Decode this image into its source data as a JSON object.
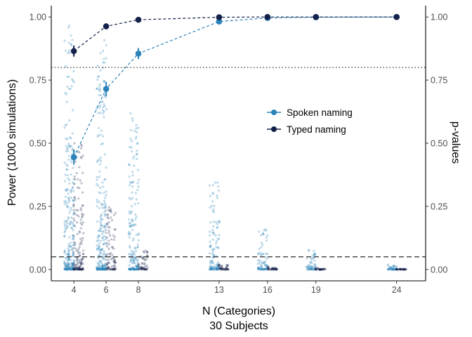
{
  "chart_data": {
    "type": "line",
    "title": "",
    "xlabel": "N (Categories)",
    "xlabel_sub": "30 Subjects",
    "ylabel_left": "Power (1000 simulations)",
    "ylabel_right": "p-values",
    "x_ticks": [
      4,
      6,
      8,
      13,
      16,
      19,
      24
    ],
    "y_ticks": [
      0.0,
      0.25,
      0.5,
      0.75,
      1.0
    ],
    "y_tick_labels": [
      "0.00",
      "0.25",
      "0.50",
      "0.75",
      "1.00"
    ],
    "xlim": [
      2.6,
      25.8
    ],
    "ylim": [
      -0.045,
      1.045
    ],
    "power_threshold": 0.8,
    "alpha_threshold": 0.05,
    "grid": false,
    "legend_position": "center-right",
    "series": [
      {
        "name": "Spoken naming",
        "color": "#2b83ba",
        "x": [
          4,
          6,
          8,
          13,
          16,
          19,
          24
        ],
        "power": [
          0.445,
          0.715,
          0.855,
          0.982,
          0.996,
          0.999,
          1.0
        ],
        "ci_low": [
          0.415,
          0.687,
          0.833,
          0.975,
          0.992,
          0.997,
          0.999
        ],
        "ci_high": [
          0.475,
          0.743,
          0.877,
          0.989,
          0.999,
          1.0,
          1.0
        ],
        "pvalue_spread_max": [
          0.98,
          0.92,
          0.62,
          0.35,
          0.17,
          0.08,
          0.02
        ]
      },
      {
        "name": "Typed naming",
        "color": "#14214a",
        "x": [
          4,
          6,
          8,
          13,
          16,
          19,
          24
        ],
        "power": [
          0.865,
          0.963,
          0.989,
          0.999,
          1.0,
          1.0,
          1.0
        ],
        "ci_low": [
          0.843,
          0.951,
          0.982,
          0.997,
          0.999,
          1.0,
          1.0
        ],
        "ci_high": [
          0.887,
          0.975,
          0.995,
          1.0,
          1.0,
          1.0,
          1.0
        ],
        "pvalue_spread_max": [
          0.52,
          0.25,
          0.08,
          0.02,
          0.01,
          0.005,
          0.003
        ]
      }
    ]
  }
}
